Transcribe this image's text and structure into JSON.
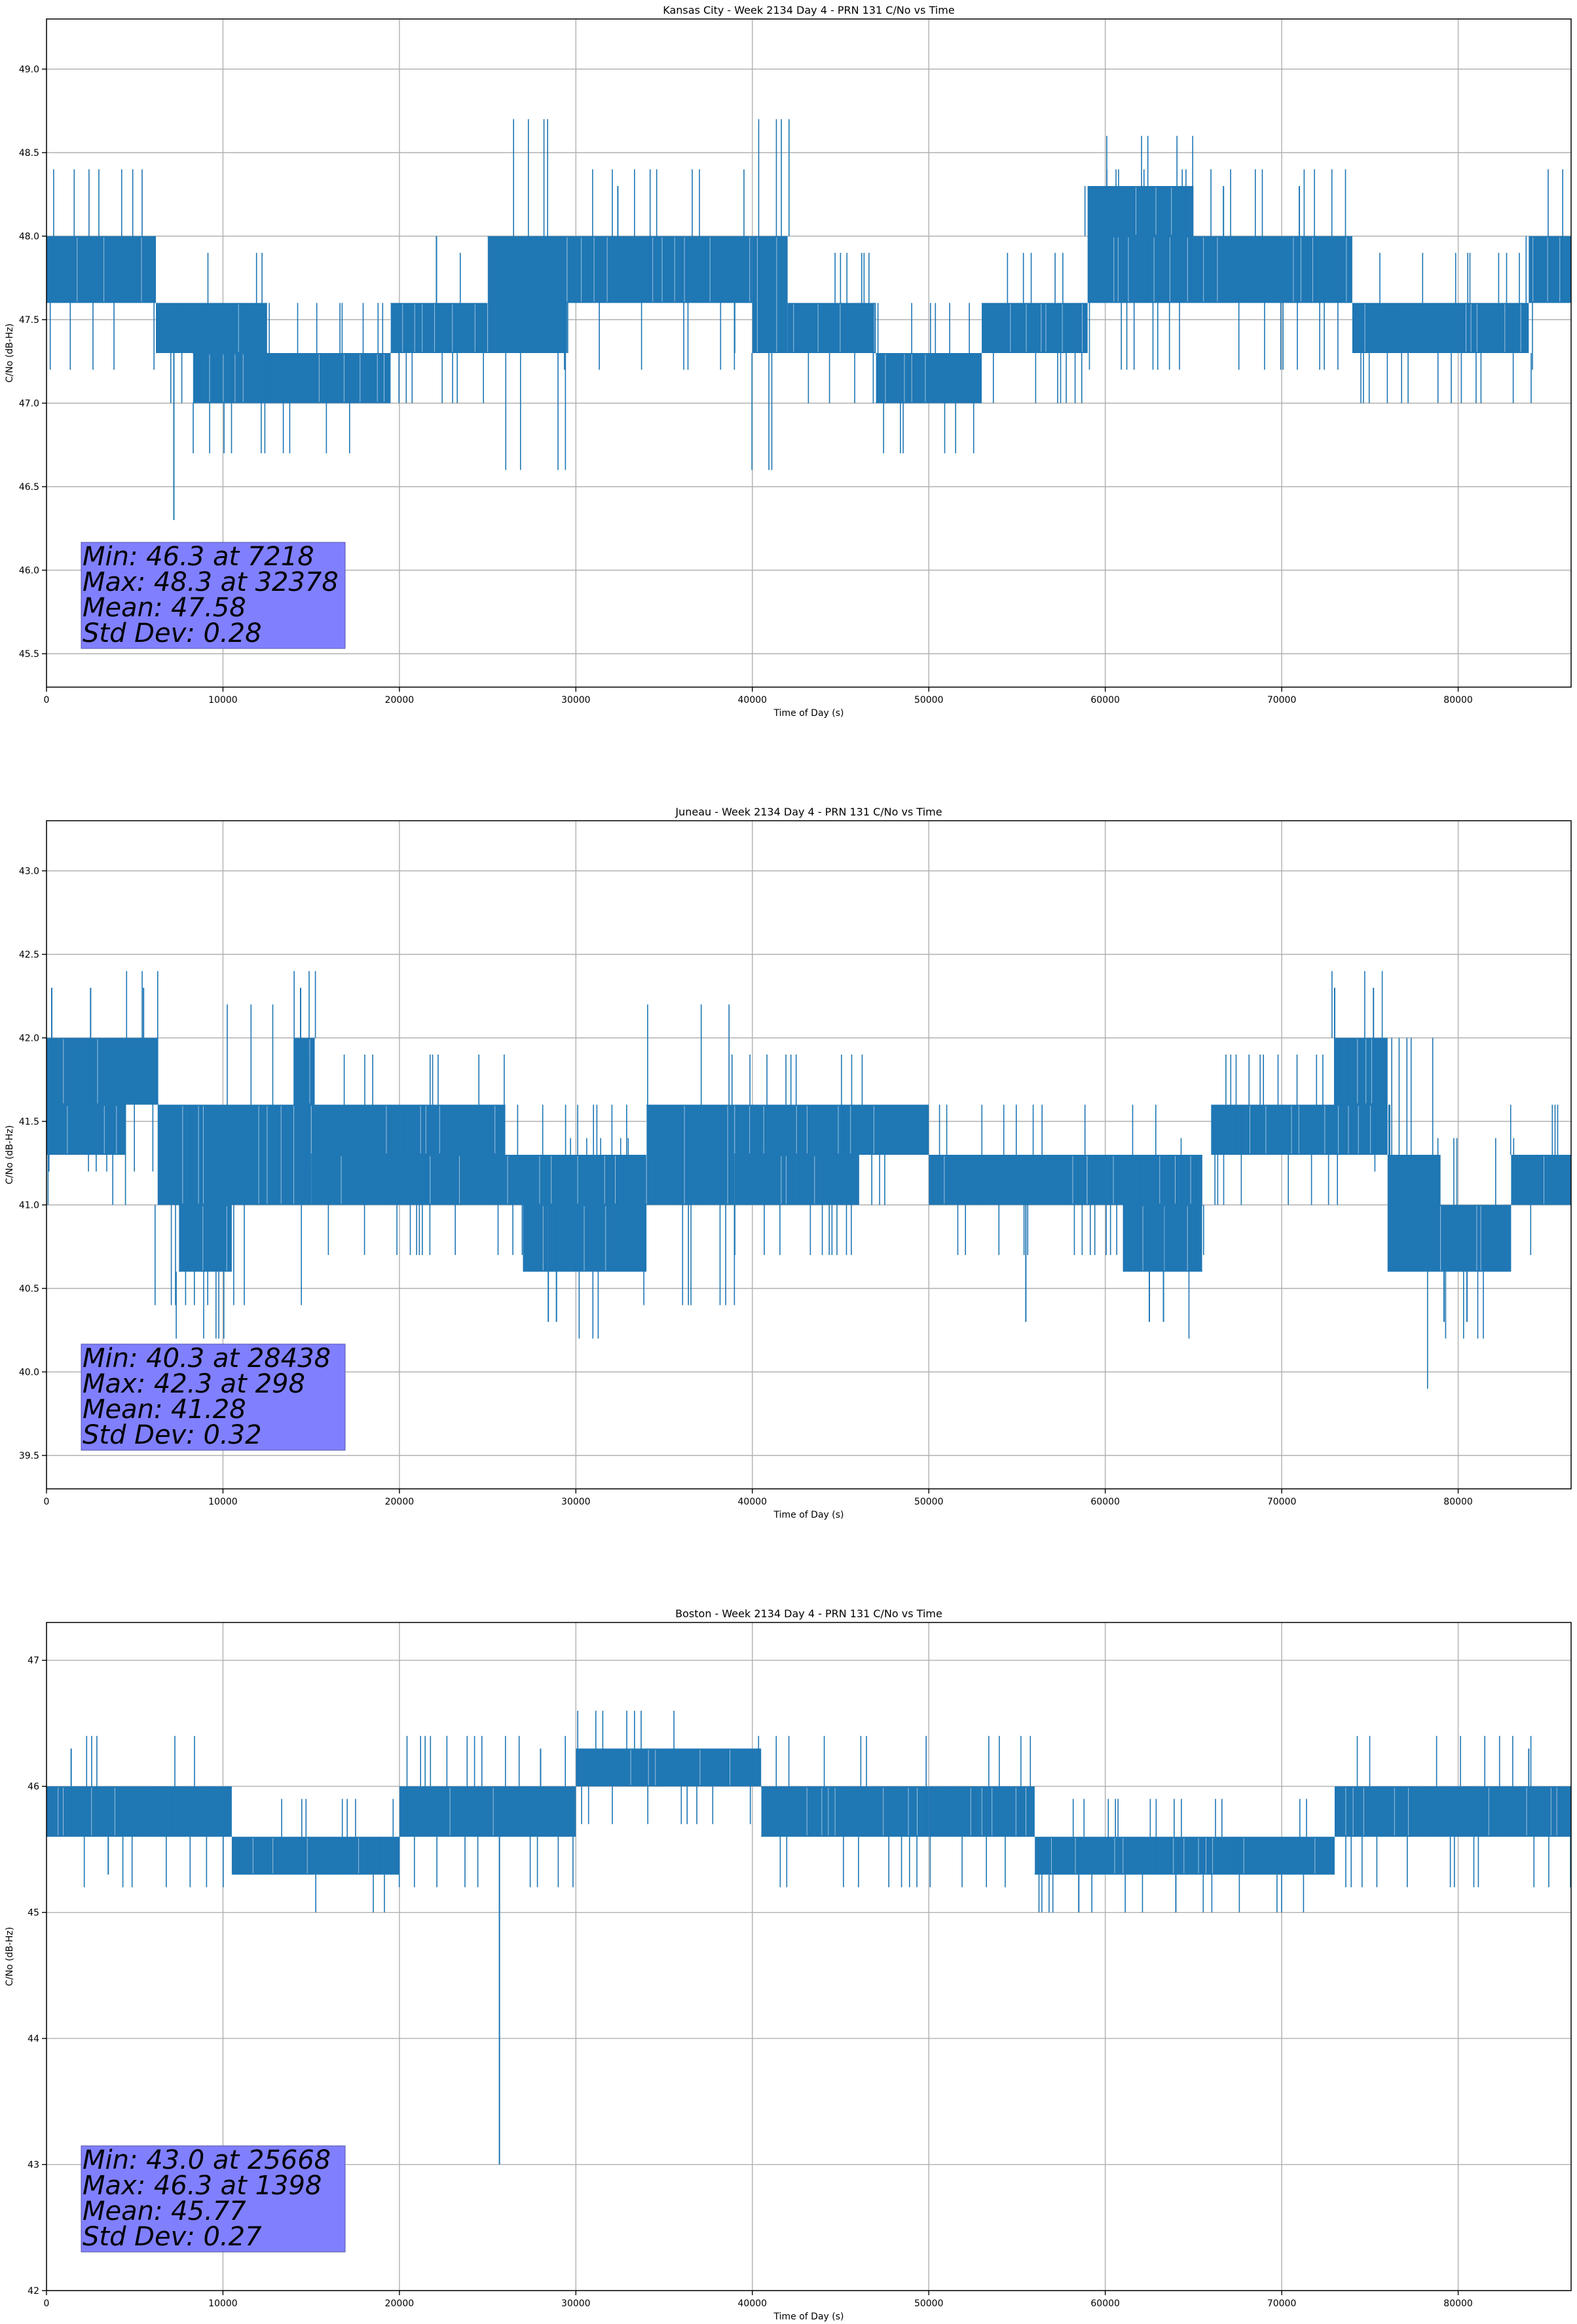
{
  "chart_data": [
    {
      "type": "line",
      "title": "Kansas City - Week 2134 Day 4 - PRN 131 C/No vs Time",
      "xlabel": "Time of Day (s)",
      "ylabel": "C/No (dB-Hz)",
      "xlim": [
        0,
        86400
      ],
      "ylim": [
        45.3,
        49.3
      ],
      "xticks": [
        0,
        10000,
        20000,
        30000,
        40000,
        50000,
        60000,
        70000,
        80000
      ],
      "yticks": [
        45.5,
        46.0,
        46.5,
        47.0,
        47.5,
        48.0,
        48.5,
        49.0
      ],
      "ytick_decimals": 1,
      "grid": true,
      "color": "#1f77b4",
      "stats": [
        "Min: 46.3 at 7218",
        "Max: 48.3 at 32378",
        "Mean: 47.58",
        "Std Dev: 0.28"
      ],
      "bands": [
        {
          "x0": 0,
          "x1": 6200,
          "y0": 47.6,
          "y1": 48.0
        },
        {
          "x0": 6200,
          "x1": 12500,
          "y0": 47.3,
          "y1": 47.6
        },
        {
          "x0": 8300,
          "x1": 12500,
          "y0": 47.0,
          "y1": 47.3
        },
        {
          "x0": 12500,
          "x1": 19500,
          "y0": 47.0,
          "y1": 47.3
        },
        {
          "x0": 19500,
          "x1": 25000,
          "y0": 47.3,
          "y1": 47.6
        },
        {
          "x0": 25000,
          "x1": 29500,
          "y0": 47.3,
          "y1": 48.0
        },
        {
          "x0": 29500,
          "x1": 40000,
          "y0": 47.6,
          "y1": 48.0
        },
        {
          "x0": 40000,
          "x1": 42000,
          "y0": 47.3,
          "y1": 48.0
        },
        {
          "x0": 42000,
          "x1": 47000,
          "y0": 47.3,
          "y1": 47.6
        },
        {
          "x0": 47000,
          "x1": 53000,
          "y0": 47.0,
          "y1": 47.3
        },
        {
          "x0": 53000,
          "x1": 59000,
          "y0": 47.3,
          "y1": 47.6
        },
        {
          "x0": 59000,
          "x1": 65000,
          "y0": 48.0,
          "y1": 48.3
        },
        {
          "x0": 59000,
          "x1": 74000,
          "y0": 47.6,
          "y1": 48.0
        },
        {
          "x0": 74000,
          "x1": 84000,
          "y0": 47.3,
          "y1": 47.6
        },
        {
          "x0": 84000,
          "x1": 86400,
          "y0": 47.6,
          "y1": 48.0
        }
      ],
      "spikes": [
        {
          "x": 7218,
          "y0": 46.3,
          "y1": 47.6
        },
        {
          "x": 32378,
          "y0": 48.0,
          "y1": 48.3
        },
        {
          "x": 22100,
          "y0": 47.6,
          "y1": 48.0
        },
        {
          "x": 39000,
          "y0": 47.3,
          "y1": 47.6
        },
        {
          "x": 66700,
          "y0": 47.6,
          "y1": 48.3
        },
        {
          "x": 71000,
          "y0": 47.6,
          "y1": 48.3
        }
      ]
    },
    {
      "type": "line",
      "title": "Juneau - Week 2134 Day 4 - PRN 131 C/No vs Time",
      "xlabel": "Time of Day (s)",
      "ylabel": "C/No (dB-Hz)",
      "xlim": [
        0,
        86400
      ],
      "ylim": [
        39.3,
        43.3
      ],
      "xticks": [
        0,
        10000,
        20000,
        30000,
        40000,
        50000,
        60000,
        70000,
        80000
      ],
      "yticks": [
        39.5,
        40.0,
        40.5,
        41.0,
        41.5,
        42.0,
        42.5,
        43.0
      ],
      "ytick_decimals": 1,
      "grid": true,
      "color": "#1f77b4",
      "stats": [
        "Min: 40.3 at 28438",
        "Max: 42.3 at 298",
        "Mean: 41.28",
        "Std Dev: 0.32"
      ],
      "bands": [
        {
          "x0": 0,
          "x1": 6300,
          "y0": 41.6,
          "y1": 42.0
        },
        {
          "x0": 0,
          "x1": 4500,
          "y0": 41.3,
          "y1": 41.6
        },
        {
          "x0": 6300,
          "x1": 15000,
          "y0": 41.0,
          "y1": 41.6
        },
        {
          "x0": 7500,
          "x1": 10500,
          "y0": 40.6,
          "y1": 41.0
        },
        {
          "x0": 14000,
          "x1": 15200,
          "y0": 41.6,
          "y1": 42.0
        },
        {
          "x0": 15000,
          "x1": 26000,
          "y0": 41.3,
          "y1": 41.6
        },
        {
          "x0": 15000,
          "x1": 34000,
          "y0": 41.0,
          "y1": 41.3
        },
        {
          "x0": 27000,
          "x1": 34000,
          "y0": 40.6,
          "y1": 41.0
        },
        {
          "x0": 34000,
          "x1": 39000,
          "y0": 41.0,
          "y1": 41.6
        },
        {
          "x0": 39000,
          "x1": 50000,
          "y0": 41.3,
          "y1": 41.6
        },
        {
          "x0": 39000,
          "x1": 46000,
          "y0": 41.0,
          "y1": 41.3
        },
        {
          "x0": 50000,
          "x1": 59000,
          "y0": 41.0,
          "y1": 41.3
        },
        {
          "x0": 59000,
          "x1": 65500,
          "y0": 41.0,
          "y1": 41.3
        },
        {
          "x0": 61000,
          "x1": 65500,
          "y0": 40.6,
          "y1": 41.0
        },
        {
          "x0": 66000,
          "x1": 76000,
          "y0": 41.3,
          "y1": 41.6
        },
        {
          "x0": 73000,
          "x1": 76000,
          "y0": 41.6,
          "y1": 42.0
        },
        {
          "x0": 76000,
          "x1": 79000,
          "y0": 40.6,
          "y1": 41.3
        },
        {
          "x0": 79000,
          "x1": 83000,
          "y0": 40.6,
          "y1": 41.0
        },
        {
          "x0": 83000,
          "x1": 86400,
          "y0": 41.0,
          "y1": 41.3
        }
      ],
      "spikes": [
        {
          "x": 298,
          "y0": 41.6,
          "y1": 42.3
        },
        {
          "x": 2500,
          "y0": 41.6,
          "y1": 42.3
        },
        {
          "x": 5500,
          "y0": 41.6,
          "y1": 42.3
        },
        {
          "x": 28438,
          "y0": 40.3,
          "y1": 41.0
        },
        {
          "x": 28900,
          "y0": 40.3,
          "y1": 41.0
        },
        {
          "x": 14400,
          "y0": 41.6,
          "y1": 42.3
        },
        {
          "x": 55500,
          "y0": 40.3,
          "y1": 41.0
        },
        {
          "x": 62500,
          "y0": 40.3,
          "y1": 41.0
        },
        {
          "x": 63300,
          "y0": 40.3,
          "y1": 41.0
        },
        {
          "x": 73000,
          "y0": 41.6,
          "y1": 42.3
        },
        {
          "x": 75200,
          "y0": 41.6,
          "y1": 42.3
        },
        {
          "x": 79200,
          "y0": 40.3,
          "y1": 41.0
        },
        {
          "x": 80500,
          "y0": 40.3,
          "y1": 41.0
        }
      ]
    },
    {
      "type": "line",
      "title": "Boston - Week 2134 Day 4 - PRN 131 C/No vs Time",
      "xlabel": "Time of Day (s)",
      "ylabel": "C/No (dB-Hz)",
      "xlim": [
        0,
        86400
      ],
      "ylim": [
        42,
        47.3
      ],
      "xticks": [
        0,
        10000,
        20000,
        30000,
        40000,
        50000,
        60000,
        70000,
        80000
      ],
      "yticks": [
        42,
        43,
        44,
        45,
        46,
        47
      ],
      "ytick_decimals": 0,
      "grid": true,
      "color": "#1f77b4",
      "stats": [
        "Min: 43.0 at 25668",
        "Max: 46.3 at 1398",
        "Mean: 45.77",
        "Std Dev: 0.27"
      ],
      "bands": [
        {
          "x0": 0,
          "x1": 10500,
          "y0": 45.6,
          "y1": 46.0
        },
        {
          "x0": 10500,
          "x1": 20000,
          "y0": 45.3,
          "y1": 45.6
        },
        {
          "x0": 20000,
          "x1": 30000,
          "y0": 45.6,
          "y1": 46.0
        },
        {
          "x0": 30000,
          "x1": 40500,
          "y0": 46.0,
          "y1": 46.3
        },
        {
          "x0": 40500,
          "x1": 50000,
          "y0": 45.6,
          "y1": 46.0
        },
        {
          "x0": 50000,
          "x1": 56000,
          "y0": 45.6,
          "y1": 46.0
        },
        {
          "x0": 56000,
          "x1": 73000,
          "y0": 45.3,
          "y1": 45.6
        },
        {
          "x0": 73000,
          "x1": 86400,
          "y0": 45.6,
          "y1": 46.0
        }
      ],
      "spikes": [
        {
          "x": 25668,
          "y0": 43.0,
          "y1": 45.6
        },
        {
          "x": 1398,
          "y0": 46.0,
          "y1": 46.3
        },
        {
          "x": 3500,
          "y0": 45.3,
          "y1": 45.6
        },
        {
          "x": 28000,
          "y0": 46.0,
          "y1": 46.3
        },
        {
          "x": 58500,
          "y0": 45.0,
          "y1": 45.3
        },
        {
          "x": 64000,
          "y0": 45.0,
          "y1": 45.3
        },
        {
          "x": 84000,
          "y0": 46.0,
          "y1": 46.3
        }
      ]
    }
  ]
}
